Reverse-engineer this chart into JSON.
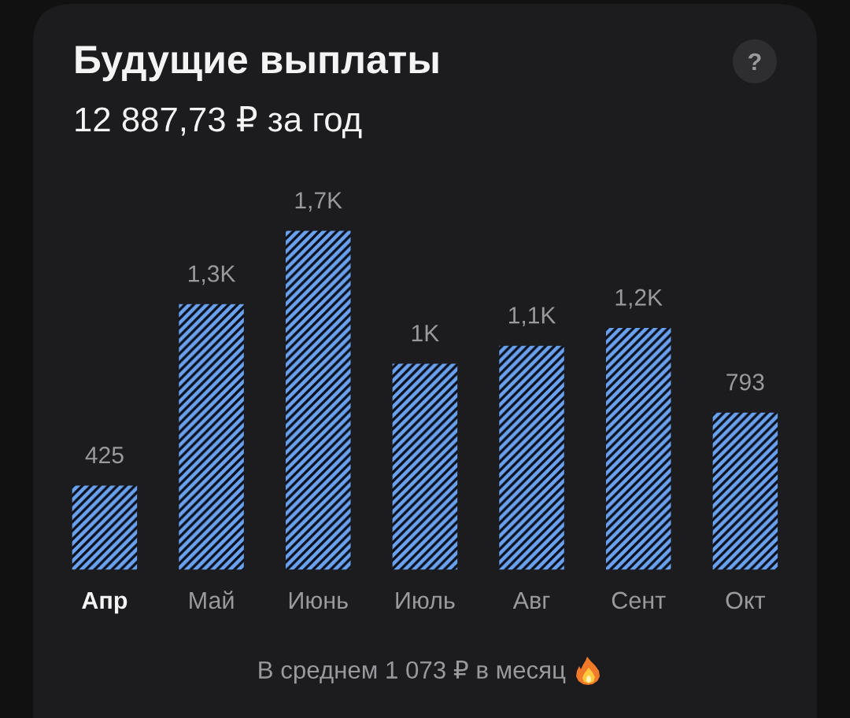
{
  "chart_data": {
    "type": "bar",
    "title": "Будущие выплаты",
    "subtitle": "12 887,73 ₽ за год",
    "categories": [
      "Апр",
      "Май",
      "Июнь",
      "Июль",
      "Авг",
      "Сент",
      "Окт"
    ],
    "values": [
      425,
      1340,
      1710,
      1040,
      1130,
      1220,
      793
    ],
    "value_labels": [
      "425",
      "1,3K",
      "1,7K",
      "1K",
      "1,1K",
      "1,2K",
      "793"
    ],
    "color": "#6aa2ef",
    "tick_labels": "x",
    "annotations": [
      "В среднем 1 073 ₽ в месяц",
      "?"
    ]
  }
}
